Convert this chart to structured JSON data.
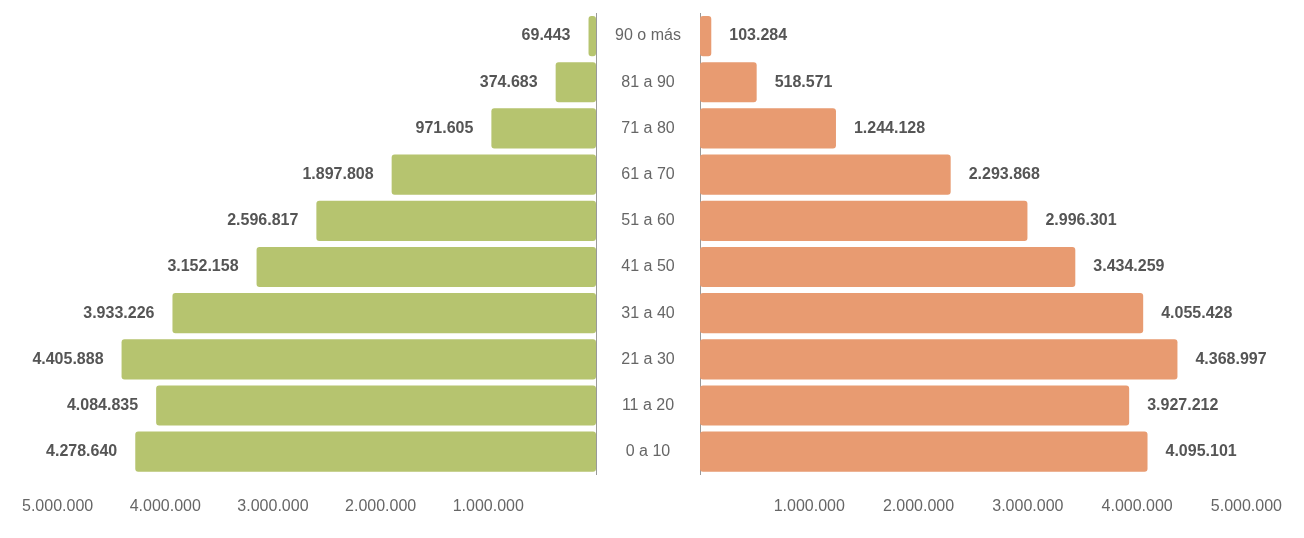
{
  "chart_data": [
    {
      "type": "bar",
      "orientation": "horizontal",
      "categories": [
        "90 o más",
        "81 a 90",
        "71 a 80",
        "61 a 70",
        "51 a 60",
        "41 a 50",
        "31 a 40",
        "21 a 30",
        "11 a 20",
        "0 a 10"
      ],
      "values": [
        69443,
        374683,
        971605,
        1897808,
        2596817,
        3152158,
        3933226,
        4405888,
        4084835,
        4278640
      ],
      "value_labels": [
        "69.443",
        "374.683",
        "971.605",
        "1.897.808",
        "2.596.817",
        "3.152.158",
        "3.933.226",
        "4.405.888",
        "4.084.835",
        "4.278.640"
      ],
      "color": "#b6c46f",
      "xlim": [
        5000000,
        0
      ],
      "xticks": [
        {
          "value": 5000000,
          "label": "5.000.000"
        },
        {
          "value": 4000000,
          "label": "4.000.000"
        },
        {
          "value": 3000000,
          "label": "3.000.000"
        },
        {
          "value": 2000000,
          "label": "2.000.000"
        },
        {
          "value": 1000000,
          "label": "1.000.000"
        }
      ]
    },
    {
      "type": "bar",
      "orientation": "horizontal",
      "categories": [
        null,
        null,
        null,
        null,
        null,
        null,
        null,
        null,
        null,
        null
      ],
      "values": [
        103284,
        518571,
        1244128,
        2293868,
        2996301,
        3434259,
        4055428,
        4368997,
        3927212,
        4095101
      ],
      "value_labels": [
        "103.284",
        "518.571",
        "1.244.128",
        "2.293.868",
        "2.996.301",
        "3.434.259",
        "4.055.428",
        "4.368.997",
        "3.927.212",
        "4.095.101"
      ],
      "color": "#e89b71",
      "xlim": [
        0,
        5000000
      ],
      "tick_labels": "x",
      "xticks": [
        {
          "value": 1000000,
          "label": "1.000.000"
        },
        {
          "value": 2000000,
          "label": "2.000.000"
        },
        {
          "value": 3000000,
          "label": "3.000.000"
        },
        {
          "value": 4000000,
          "label": "4.000.000"
        },
        {
          "value": 5000000,
          "label": "5.000.000"
        }
      ]
    }
  ]
}
